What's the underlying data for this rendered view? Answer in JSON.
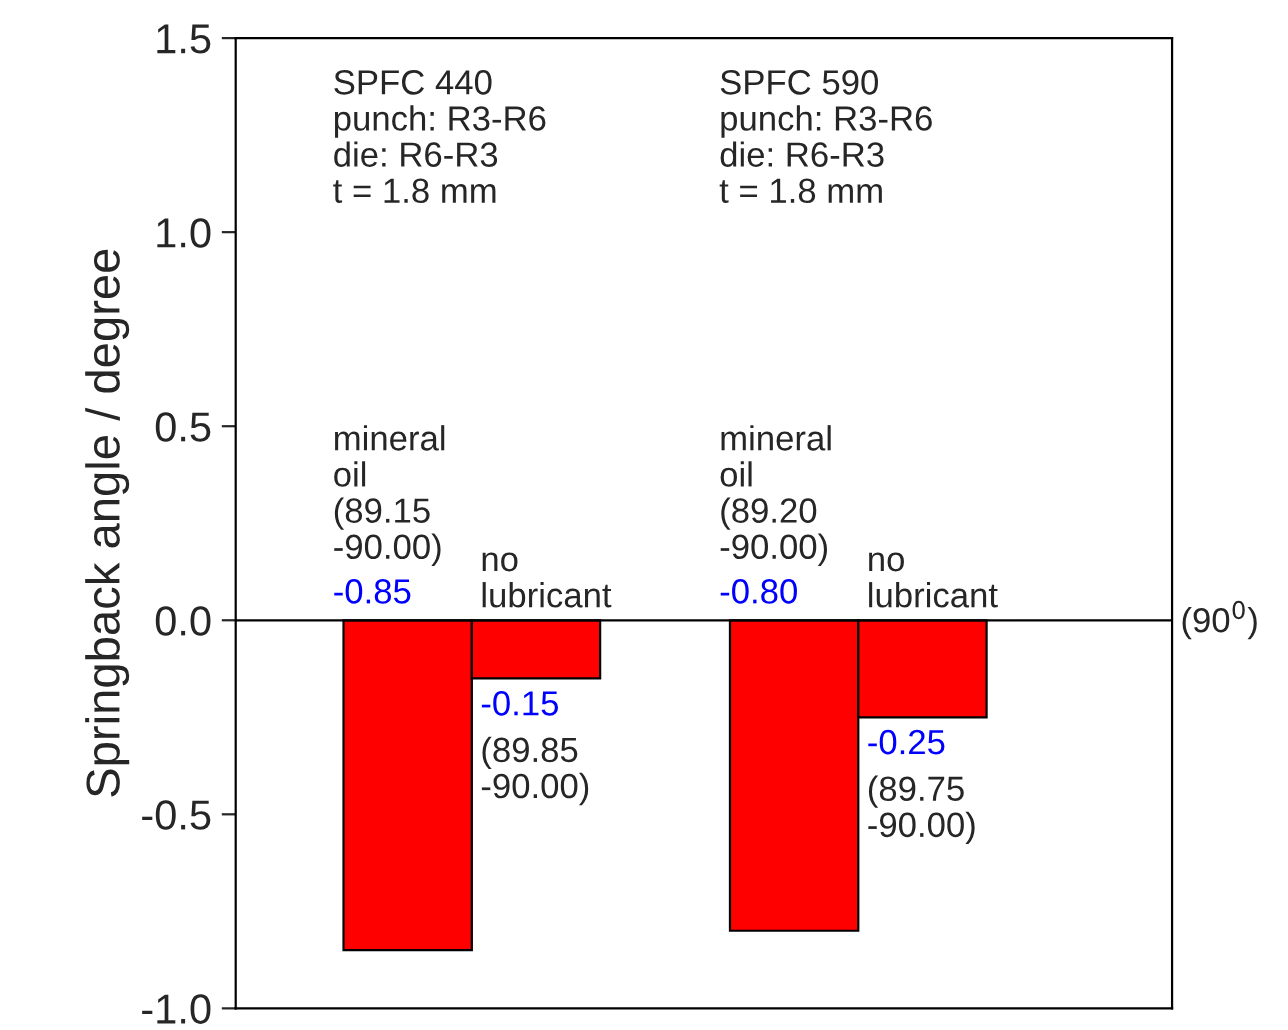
{
  "chart_data": {
    "type": "bar",
    "ylabel": "Springback angle / degree",
    "categories": [
      null,
      null
    ],
    "series": [
      {
        "color": "#ff0000",
        "values": [
          -0.85,
          -0.8
        ],
        "value_labels": [
          "-0.85",
          "-0.80"
        ]
      },
      {
        "color": "#ff0000",
        "values": [
          -0.15,
          -0.25
        ],
        "value_labels": [
          "-0.15",
          "-0.25"
        ]
      }
    ],
    "ylim": [
      -1.0,
      1.5
    ],
    "yticks": [
      {
        "value": -1.0,
        "label": "-1.0"
      },
      {
        "value": -0.5,
        "label": "-0.5"
      },
      {
        "value": 0.0,
        "label": "0.0"
      },
      {
        "value": 0.5,
        "label": "0.5"
      },
      {
        "value": 1.0,
        "label": "1.0"
      },
      {
        "value": 1.5,
        "label": "1.5"
      }
    ],
    "ref_lines": [
      {
        "axis": "y",
        "value": 0,
        "label": "(90$^{0}$)",
        "color": "#000000"
      }
    ],
    "annotations": [
      "SPFC 440\npunch: R3-R6\ndie: R6-R3\nt = 1.8 mm",
      "SPFC 590\npunch: R3-R6\ndie: R6-R3\nt = 1.8 mm",
      "mineral\noil\n(89.15\n-90.00)",
      "no\nlubricant",
      "(89.85\n-90.00)",
      "mineral\noil\n(89.20\n-90.00)",
      "no\nlubricant",
      "(89.75\n-90.00)"
    ],
    "grid": false,
    "legend": false
  }
}
